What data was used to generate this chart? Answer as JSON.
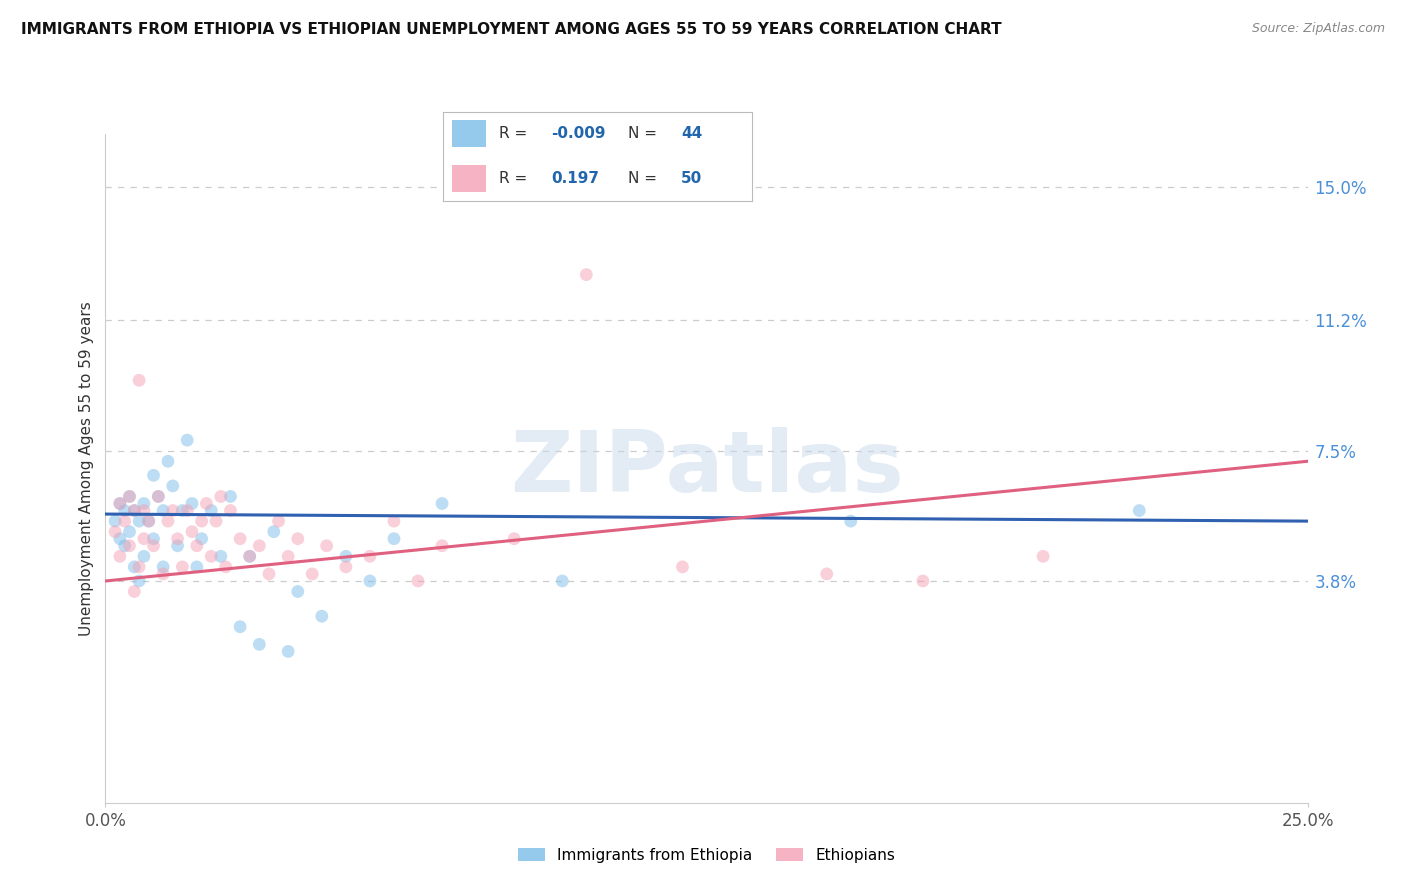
{
  "title": "IMMIGRANTS FROM ETHIOPIA VS ETHIOPIAN UNEMPLOYMENT AMONG AGES 55 TO 59 YEARS CORRELATION CHART",
  "source": "Source: ZipAtlas.com",
  "ylabel": "Unemployment Among Ages 55 to 59 years",
  "xlim": [
    0.0,
    0.25
  ],
  "ylim": [
    -0.025,
    0.165
  ],
  "right_yticks": [
    0.038,
    0.075,
    0.112,
    0.15
  ],
  "right_yticklabels": [
    "3.8%",
    "7.5%",
    "11.2%",
    "15.0%"
  ],
  "blue_scatter_x": [
    0.002,
    0.003,
    0.003,
    0.004,
    0.004,
    0.005,
    0.005,
    0.006,
    0.006,
    0.007,
    0.007,
    0.008,
    0.008,
    0.009,
    0.01,
    0.01,
    0.011,
    0.012,
    0.012,
    0.013,
    0.014,
    0.015,
    0.016,
    0.017,
    0.018,
    0.019,
    0.02,
    0.022,
    0.024,
    0.026,
    0.028,
    0.03,
    0.032,
    0.035,
    0.038,
    0.04,
    0.045,
    0.05,
    0.055,
    0.06,
    0.07,
    0.095,
    0.155,
    0.215
  ],
  "blue_scatter_y": [
    0.055,
    0.05,
    0.06,
    0.048,
    0.058,
    0.052,
    0.062,
    0.042,
    0.058,
    0.055,
    0.038,
    0.06,
    0.045,
    0.055,
    0.05,
    0.068,
    0.062,
    0.058,
    0.042,
    0.072,
    0.065,
    0.048,
    0.058,
    0.078,
    0.06,
    0.042,
    0.05,
    0.058,
    0.045,
    0.062,
    0.025,
    0.045,
    0.02,
    0.052,
    0.018,
    0.035,
    0.028,
    0.045,
    0.038,
    0.05,
    0.06,
    0.038,
    0.055,
    0.058
  ],
  "pink_scatter_x": [
    0.002,
    0.003,
    0.003,
    0.004,
    0.005,
    0.005,
    0.006,
    0.006,
    0.007,
    0.007,
    0.008,
    0.008,
    0.009,
    0.01,
    0.011,
    0.012,
    0.013,
    0.014,
    0.015,
    0.016,
    0.017,
    0.018,
    0.019,
    0.02,
    0.021,
    0.022,
    0.023,
    0.024,
    0.025,
    0.026,
    0.028,
    0.03,
    0.032,
    0.034,
    0.036,
    0.038,
    0.04,
    0.043,
    0.046,
    0.05,
    0.055,
    0.06,
    0.065,
    0.07,
    0.085,
    0.1,
    0.12,
    0.15,
    0.17,
    0.195
  ],
  "pink_scatter_y": [
    0.052,
    0.045,
    0.06,
    0.055,
    0.048,
    0.062,
    0.058,
    0.035,
    0.095,
    0.042,
    0.05,
    0.058,
    0.055,
    0.048,
    0.062,
    0.04,
    0.055,
    0.058,
    0.05,
    0.042,
    0.058,
    0.052,
    0.048,
    0.055,
    0.06,
    0.045,
    0.055,
    0.062,
    0.042,
    0.058,
    0.05,
    0.045,
    0.048,
    0.04,
    0.055,
    0.045,
    0.05,
    0.04,
    0.048,
    0.042,
    0.045,
    0.055,
    0.038,
    0.048,
    0.05,
    0.125,
    0.042,
    0.04,
    0.038,
    0.045
  ],
  "blue_line_x": [
    0.0,
    0.25
  ],
  "blue_line_y": [
    0.057,
    0.055
  ],
  "pink_line_x": [
    0.0,
    0.25
  ],
  "pink_line_y": [
    0.038,
    0.072
  ],
  "scatter_alpha": 0.5,
  "scatter_size": 85,
  "blue_color": "#7bbde8",
  "pink_color": "#f4a0b5",
  "blue_line_color": "#3060b0",
  "pink_line_color": "#e06080",
  "watermark_text": "ZIPatlas",
  "watermark_color": "#c8d8ec",
  "watermark_alpha": 0.5,
  "background_color": "#ffffff",
  "grid_color": "#cccccc",
  "title_color": "#111111",
  "source_color": "#888888",
  "right_tick_color": "#4a90d9",
  "legend_r1": "-0.009",
  "legend_n1": "44",
  "legend_r2": "0.197",
  "legend_n2": "50"
}
